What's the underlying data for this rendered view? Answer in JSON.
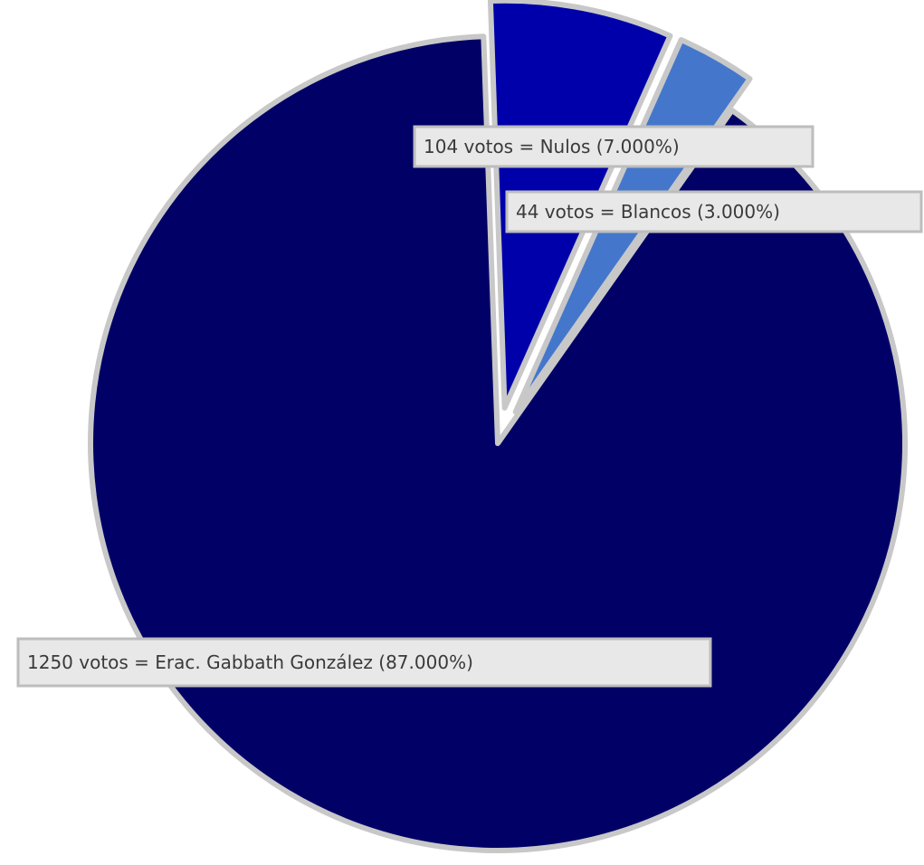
{
  "chart_data": {
    "type": "pie",
    "slices": [
      {
        "label": "1250 votos = Erac. Gabbath González (87.000%)",
        "value": 87.0,
        "color": "#000066"
      },
      {
        "label": "104 votos = Nulos (7.000%)",
        "value": 7.0,
        "color": "#0000aa"
      },
      {
        "label": "44 votos = Blancos (3.000%)",
        "value": 3.0,
        "color": "#4477cc"
      }
    ],
    "legend": "none"
  }
}
